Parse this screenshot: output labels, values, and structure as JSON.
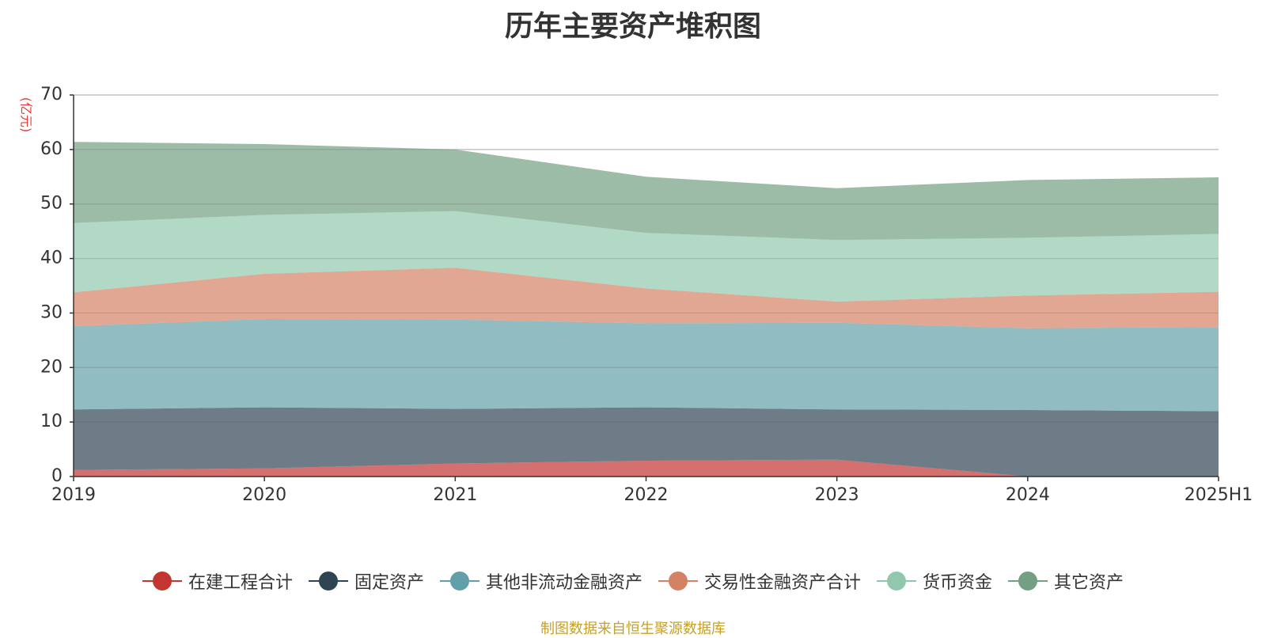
{
  "chart_data": {
    "type": "area",
    "stacked": true,
    "title": "历年主要资产堆积图",
    "ylabel": "(亿元)",
    "categories": [
      "2019",
      "2020",
      "2021",
      "2022",
      "2023",
      "2024",
      "2025H1"
    ],
    "ylim": [
      0,
      70
    ],
    "yticks": [
      0,
      10,
      20,
      30,
      40,
      50,
      60,
      70
    ],
    "grid": true,
    "legend_position": "bottom",
    "series": [
      {
        "name": "在建工程合计",
        "color": "#c23531",
        "values": [
          1.2,
          1.5,
          2.4,
          2.9,
          3.1,
          0.0,
          0.0
        ]
      },
      {
        "name": "固定资产",
        "color": "#2f4554",
        "values": [
          11.1,
          11.2,
          10.0,
          9.8,
          9.2,
          12.2,
          12.0
        ]
      },
      {
        "name": "其他非流动金融资产",
        "color": "#61a0a8",
        "values": [
          15.3,
          16.2,
          16.4,
          15.4,
          15.9,
          15.0,
          15.4
        ]
      },
      {
        "name": "交易性金融资产合计",
        "color": "#d48265",
        "values": [
          6.2,
          8.3,
          9.5,
          6.4,
          3.9,
          6.0,
          6.5
        ]
      },
      {
        "name": "货币资金",
        "color": "#91c7ae",
        "values": [
          12.7,
          10.8,
          10.4,
          10.2,
          11.3,
          10.6,
          10.6
        ]
      },
      {
        "name": "其它资产",
        "color": "#749f83",
        "values": [
          14.9,
          13.0,
          11.3,
          10.3,
          9.5,
          10.6,
          10.4
        ]
      }
    ]
  },
  "source_note": "制图数据来自恒生聚源数据库"
}
